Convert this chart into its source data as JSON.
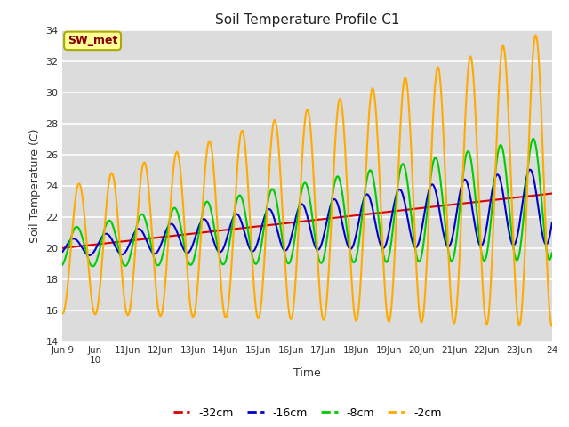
{
  "title": "Soil Temperature Profile C1",
  "xlabel": "Time",
  "ylabel": "Soil Temperature (C)",
  "ylim": [
    14,
    34
  ],
  "yticks": [
    14,
    16,
    18,
    20,
    22,
    24,
    26,
    28,
    30,
    32,
    34
  ],
  "bg_color": "#dcdcdc",
  "fig_color": "#ffffff",
  "annotation_text": "SW_met",
  "annotation_bg": "#ffff99",
  "annotation_border": "#aaaa00",
  "annotation_text_color": "#880000",
  "colors": {
    "-32cm": "#dd0000",
    "-16cm": "#0000cc",
    "-8cm": "#00cc00",
    "-2cm": "#ffaa00"
  },
  "linewidth": 1.5,
  "n_days": 15,
  "pts_per_day": 48,
  "xtick_labels": [
    "Jun 9",
    "Jun\n10",
    "11Jun",
    "12Jun",
    "13Jun",
    "14Jun",
    "15Jun",
    "16Jun",
    "17Jun",
    "18Jun",
    "19Jun",
    "20Jun",
    "21Jun",
    "22Jun",
    "23Jun",
    "24"
  ]
}
